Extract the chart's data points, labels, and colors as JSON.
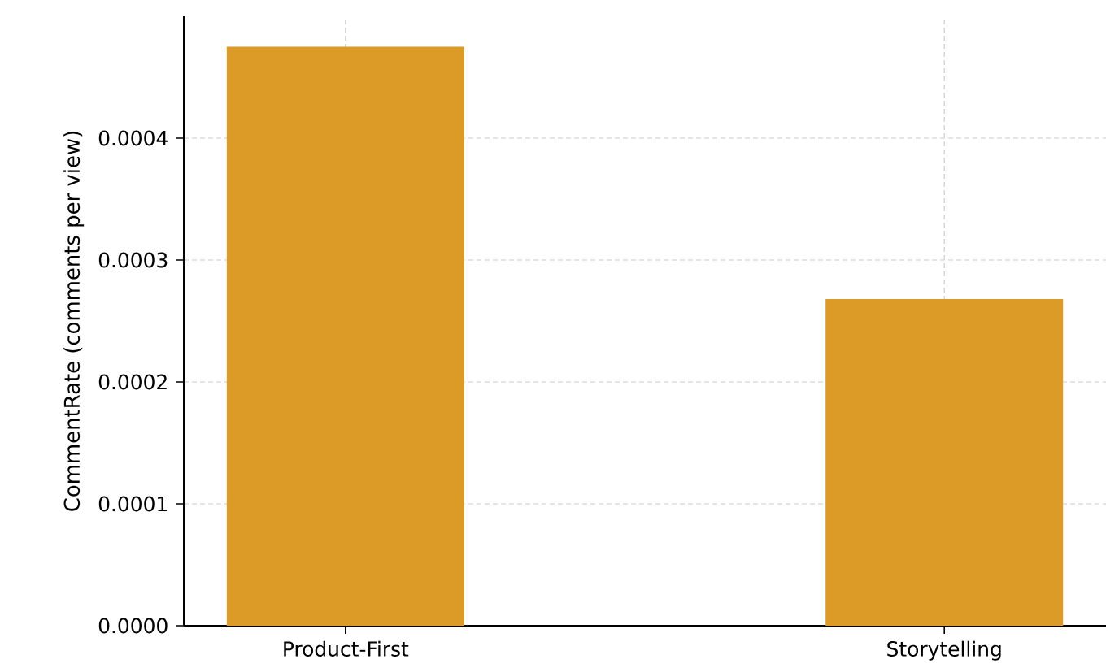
{
  "chart_data": {
    "type": "bar",
    "ylabel": "CommentRate (comments per view)",
    "categories": [
      "Product-First",
      "Storytelling"
    ],
    "values": [
      0.000475,
      0.000268
    ],
    "color": "#dc9a27",
    "ylim": [
      0,
      0.0005
    ],
    "yticks": [
      {
        "value": 0,
        "label": "0.0000"
      },
      {
        "value": 0.0001,
        "label": "0.0001"
      },
      {
        "value": 0.0002,
        "label": "0.0002"
      },
      {
        "value": 0.0003,
        "label": "0.0003"
      },
      {
        "value": 0.0004,
        "label": "0.0004"
      }
    ],
    "grid": true
  }
}
